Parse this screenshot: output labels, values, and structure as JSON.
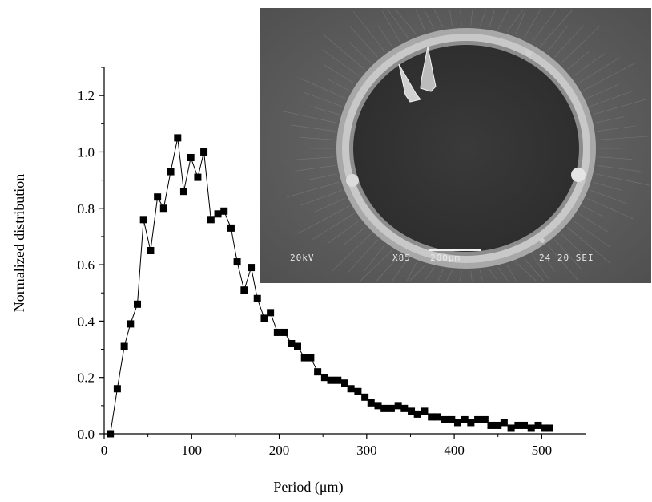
{
  "chart_data": {
    "type": "scatter",
    "line": true,
    "marker": "square",
    "xlabel": "Period (μm)",
    "ylabel": "Normalized distribution",
    "xlim": [
      0,
      550
    ],
    "ylim": [
      0,
      1.3
    ],
    "x_ticks": [
      0,
      100,
      200,
      300,
      400,
      500
    ],
    "y_ticks": [
      0.0,
      0.2,
      0.4,
      0.6,
      0.8,
      1.0,
      1.2
    ],
    "y_tick_labels": [
      "0.0",
      "0.2",
      "0.4",
      "0.6",
      "0.8",
      "1.0",
      "1.2"
    ],
    "series": [
      {
        "x": [
          7,
          15,
          23,
          30,
          38,
          45,
          53,
          61,
          68,
          76,
          84,
          91,
          99,
          107,
          114,
          122,
          130,
          137,
          145,
          152,
          160,
          168,
          175,
          183,
          190,
          198,
          206,
          214,
          221,
          229,
          236,
          244,
          252,
          259,
          267,
          275,
          282,
          290,
          298,
          305,
          313,
          320,
          328,
          336,
          343,
          351,
          358,
          366,
          374,
          381,
          389,
          397,
          404,
          412,
          419,
          427,
          435,
          442,
          450,
          457,
          465,
          473,
          480,
          488,
          496,
          503,
          509
        ],
        "y": [
          0.0,
          0.16,
          0.31,
          0.39,
          0.46,
          0.76,
          0.65,
          0.84,
          0.8,
          0.93,
          1.05,
          0.86,
          0.98,
          0.91,
          1.0,
          0.76,
          0.78,
          0.79,
          0.73,
          0.61,
          0.51,
          0.59,
          0.48,
          0.41,
          0.43,
          0.36,
          0.36,
          0.32,
          0.31,
          0.27,
          0.27,
          0.22,
          0.2,
          0.19,
          0.19,
          0.18,
          0.16,
          0.15,
          0.13,
          0.11,
          0.1,
          0.09,
          0.09,
          0.1,
          0.09,
          0.08,
          0.07,
          0.08,
          0.06,
          0.06,
          0.05,
          0.05,
          0.04,
          0.05,
          0.04,
          0.05,
          0.05,
          0.03,
          0.03,
          0.04,
          0.02,
          0.03,
          0.03,
          0.02,
          0.03,
          0.02,
          0.02
        ]
      }
    ],
    "inset": {
      "type": "sem-micrograph",
      "labels": {
        "voltage": "20kV",
        "magnification": "X85",
        "scale": "200μm",
        "id": "24 20 SEI"
      }
    }
  }
}
